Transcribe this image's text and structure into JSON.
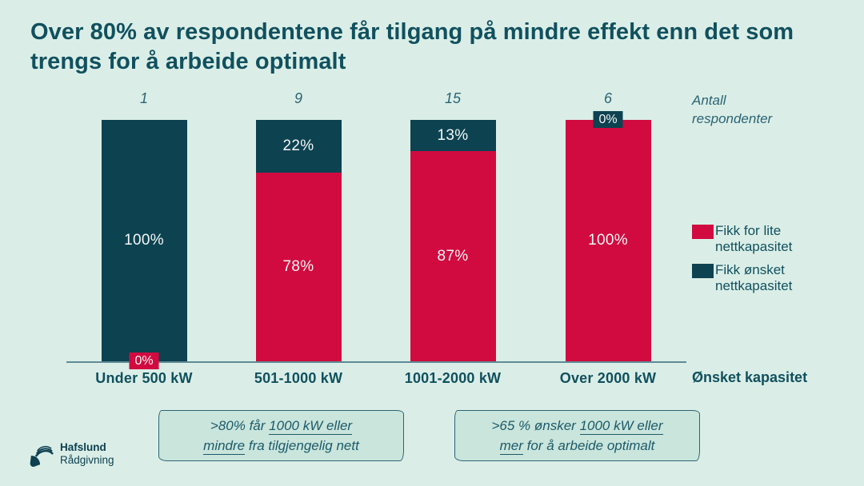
{
  "page": {
    "title_line1": "Over 80% av respondentene får tilgang på mindre effekt enn det som",
    "title_line2": "trengs for å arbeide optimalt"
  },
  "colors": {
    "background": "#daeee7",
    "bar_red": "#d10b40",
    "bar_teal": "#0d4251",
    "text_teal": "#11505e",
    "axis_line": "#5f8b96",
    "annotation_fill": "#c9e5dc",
    "annotation_border": "#2e6473"
  },
  "chart_data": {
    "type": "bar",
    "variant": "stacked-100-percent-column",
    "categories": [
      "Under 500 kW",
      "501-1000 kW",
      "1001-2000 kW",
      "Over 2000 kW"
    ],
    "respondent_counts": [
      "1",
      "9",
      "15",
      "6"
    ],
    "counts_axis_label": "Antall respondenter",
    "xlabel": "Ønsket kapasitet",
    "ylim": [
      0,
      100
    ],
    "grid": false,
    "legend_position": "right",
    "series": [
      {
        "name": "Fikk for lite nettkapasitet",
        "color": "#d10b40",
        "values": [
          0,
          78,
          87,
          100
        ],
        "labels": [
          "0%",
          "78%",
          "87%",
          "100%"
        ]
      },
      {
        "name": "Fikk ønsket nettkapasitet",
        "color": "#0d4251",
        "values": [
          100,
          22,
          13,
          0
        ],
        "labels": [
          "100%",
          "22%",
          "13%",
          "0%"
        ]
      }
    ]
  },
  "legend": {
    "items": [
      {
        "label": "Fikk for lite nettkapasitet",
        "color": "#d10b40"
      },
      {
        "label": "Fikk ønsket nettkapasitet",
        "color": "#0d4251"
      }
    ]
  },
  "annotations": [
    {
      "line1_text": ">80% får ",
      "line1_underlined": "1000 kW eller",
      "line2_underlined": "mindre",
      "line2_text": " fra tilgjengelig nett"
    },
    {
      "line1_text": ">65 % ønsker ",
      "line1_underlined": "1000 kW eller",
      "line2_underlined": "mer",
      "line2_text": " for å arbeide optimalt"
    }
  ],
  "logo": {
    "line1": "Hafslund",
    "line2": "Rådgivning"
  }
}
